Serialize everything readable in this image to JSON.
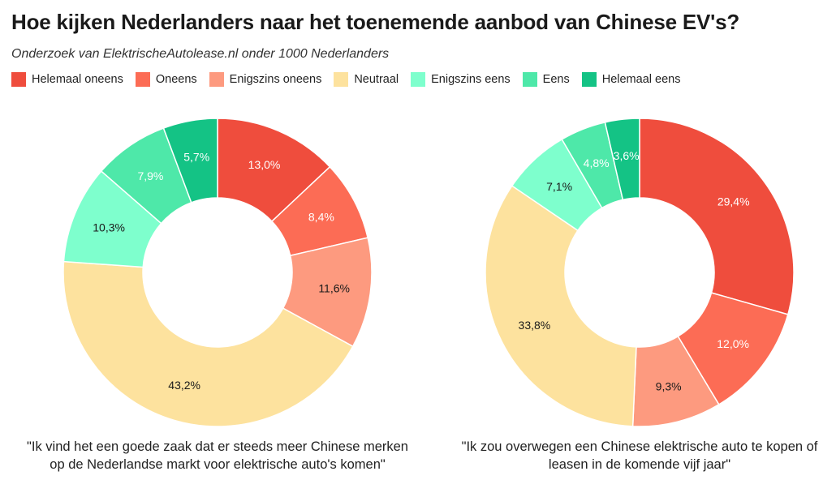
{
  "title": "Hoe kijken Nederlanders naar het toenemende aanbod van Chinese EV's?",
  "subtitle": "Onderzoek van ElektrischeAutolease.nl onder 1000 Nederlanders",
  "legend": [
    {
      "label": "Helemaal oneens",
      "color": "#ef4d3d"
    },
    {
      "label": "Oneens",
      "color": "#fc6c55"
    },
    {
      "label": "Enigszins oneens",
      "color": "#fd9a7f"
    },
    {
      "label": "Neutraal",
      "color": "#fde29e"
    },
    {
      "label": "Enigszins eens",
      "color": "#7effcd"
    },
    {
      "label": "Eens",
      "color": "#4ee8a9"
    },
    {
      "label": "Helemaal eens",
      "color": "#14c385"
    }
  ],
  "chart_data": [
    {
      "type": "pie",
      "donut": true,
      "title": "\"Ik vind het een goede zaak dat er steeds meer Chinese merken op de Nederlandse markt voor elektrische auto's komen\"",
      "categories": [
        "Helemaal oneens",
        "Oneens",
        "Enigszins oneens",
        "Neutraal",
        "Enigszins eens",
        "Eens",
        "Helemaal eens"
      ],
      "values": [
        13.0,
        8.4,
        11.6,
        43.2,
        10.3,
        7.9,
        5.7
      ],
      "labels": [
        "13,0%",
        "8,4%",
        "11,6%",
        "43,2%",
        "10,3%",
        "7,9%",
        "5,7%"
      ]
    },
    {
      "type": "pie",
      "donut": true,
      "title": "\"Ik zou overwegen een Chinese elektrische auto te kopen of leasen in de komende vijf jaar\"",
      "categories": [
        "Helemaal oneens",
        "Oneens",
        "Enigszins oneens",
        "Neutraal",
        "Enigszins eens",
        "Eens",
        "Helemaal eens"
      ],
      "values": [
        29.4,
        12.0,
        9.3,
        33.8,
        7.1,
        4.8,
        3.6
      ],
      "labels": [
        "29,4%",
        "12,0%",
        "9,3%",
        "33,8%",
        "7,1%",
        "4,8%",
        "3,6%"
      ]
    }
  ]
}
